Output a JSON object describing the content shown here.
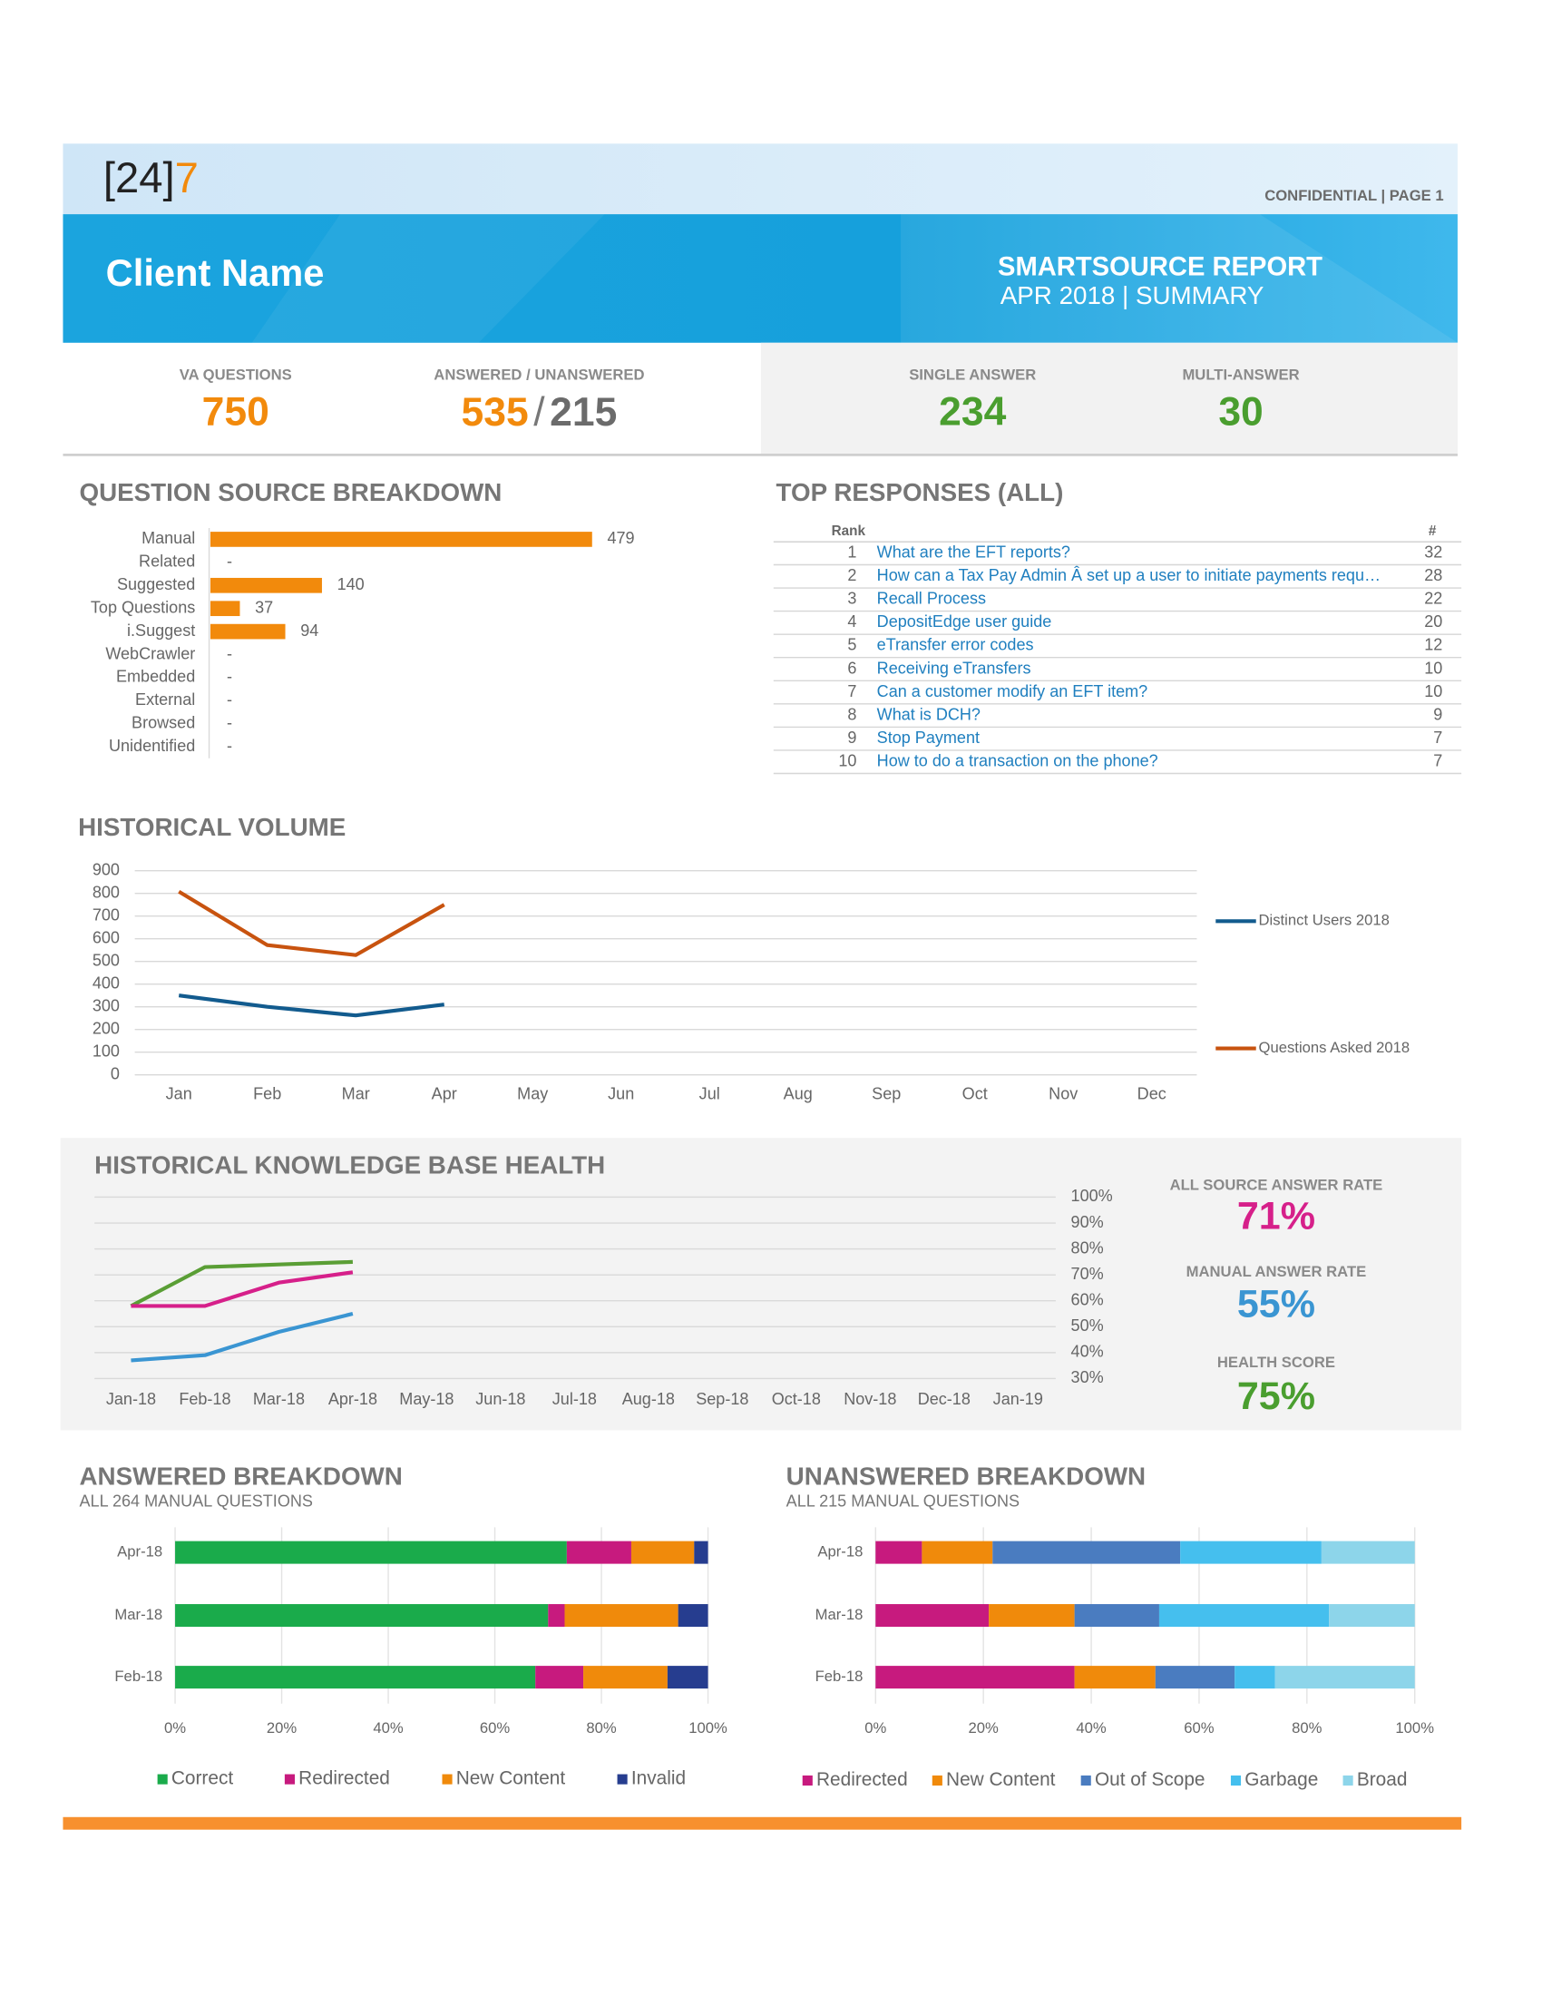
{
  "header": {
    "logo": "[24]",
    "logo_accent": "7",
    "confidential": "CONFIDENTIAL |  PAGE 1",
    "client_name": "Client Name",
    "report_title": "SMARTSOURCE REPORT",
    "report_period": "APR 2018 | SUMMARY"
  },
  "kpis": {
    "va_questions": {
      "label": "VA QUESTIONS",
      "value": 750
    },
    "answered_unanswered": {
      "label": "ANSWERED / UNANSWERED",
      "answered": 535,
      "separator": "/",
      "unanswered": 215
    },
    "single_answer": {
      "label": "SINGLE ANSWER",
      "value": 234
    },
    "multi_answer": {
      "label": "MULTI-ANSWER",
      "value": 30
    }
  },
  "top_responses": {
    "title": "TOP RESPONSES (ALL)",
    "columns": [
      "Rank",
      "#"
    ],
    "rows": [
      [
        1,
        "What are the EFT reports?",
        32
      ],
      [
        2,
        "How can a Tax Pay Admin Â set up a user to initiate payments requ…",
        28
      ],
      [
        3,
        "Recall Process",
        22
      ],
      [
        4,
        "DepositEdge user guide",
        20
      ],
      [
        5,
        "eTransfer error codes",
        12
      ],
      [
        6,
        "Receiving eTransfers",
        10
      ],
      [
        7,
        "Can a customer modify an EFT item?",
        10
      ],
      [
        8,
        "What is DCH?",
        9
      ],
      [
        9,
        "Stop Payment",
        7
      ],
      [
        10,
        "How to do a transaction on the phone?",
        7
      ]
    ]
  },
  "kb_stats": [
    {
      "title": "ALL SOURCE ANSWER RATE",
      "value": "71%",
      "color": "#d6208a"
    },
    {
      "title": "MANUAL ANSWER RATE",
      "value": "55%",
      "color": "#3a95d2"
    },
    {
      "title": "HEALTH SCORE",
      "value": "75%",
      "color": "#4a9e2f"
    }
  ],
  "chart_data": [
    {
      "type": "hbar",
      "title": "QUESTION SOURCE BREAKDOWN",
      "categories": [
        "Manual",
        "Related",
        "Suggested",
        "Top Questions",
        "i.Suggest",
        "WebCrawler",
        "Embedded",
        "External",
        "Browsed",
        "Unidentified"
      ],
      "values": [
        479,
        null,
        140,
        37,
        94,
        null,
        null,
        null,
        null,
        null
      ],
      "value_labels": [
        "479",
        "-",
        "140",
        "37",
        "94",
        "-",
        "-",
        "-",
        "-",
        "-"
      ],
      "color": "#f28a0c"
    },
    {
      "type": "line",
      "title": "HISTORICAL VOLUME",
      "categories": [
        "Jan",
        "Feb",
        "Mar",
        "Apr",
        "May",
        "Jun",
        "Jul",
        "Aug",
        "Sep",
        "Oct",
        "Nov",
        "Dec"
      ],
      "series": [
        {
          "name": "Distinct Users 2018",
          "color": "#125b8e",
          "values": [
            350,
            300,
            262,
            310,
            null,
            null,
            null,
            null,
            null,
            null,
            null,
            null
          ]
        },
        {
          "name": "Questions Asked 2018",
          "color": "#c8530f",
          "values": [
            808,
            572,
            528,
            750,
            null,
            null,
            null,
            null,
            null,
            null,
            null,
            null
          ]
        }
      ],
      "ylim": [
        0,
        900
      ],
      "yticks": [
        0,
        100,
        200,
        300,
        400,
        500,
        600,
        700,
        800,
        900
      ],
      "grid": true,
      "legend": "right"
    },
    {
      "type": "line",
      "title": "HISTORICAL KNOWLEDGE BASE HEALTH",
      "categories": [
        "Jan-18",
        "Feb-18",
        "Mar-18",
        "Apr-18",
        "May-18",
        "Jun-18",
        "Jul-18",
        "Aug-18",
        "Sep-18",
        "Oct-18",
        "Nov-18",
        "Dec-18",
        "Jan-19"
      ],
      "series": [
        {
          "color": "#5a9e35",
          "values": [
            58,
            73,
            74,
            75,
            null,
            null,
            null,
            null,
            null,
            null,
            null,
            null,
            null
          ]
        },
        {
          "color": "#d6208a",
          "values": [
            58,
            58,
            67,
            71,
            null,
            null,
            null,
            null,
            null,
            null,
            null,
            null,
            null
          ]
        },
        {
          "color": "#3a95d2",
          "values": [
            37,
            39,
            48,
            55,
            null,
            null,
            null,
            null,
            null,
            null,
            null,
            null,
            null
          ]
        }
      ],
      "ylim": [
        30,
        100
      ],
      "yticks": [
        {
          "value": 30,
          "label": "30%"
        },
        {
          "value": 40,
          "label": "40%"
        },
        {
          "value": 50,
          "label": "50%"
        },
        {
          "value": 60,
          "label": "60%"
        },
        {
          "value": 70,
          "label": "70%"
        },
        {
          "value": 80,
          "label": "80%"
        },
        {
          "value": 90,
          "label": "90%"
        },
        {
          "value": 100,
          "label": "100%"
        }
      ],
      "grid": true
    },
    {
      "type": "stacked_hbar",
      "title": "ANSWERED BREAKDOWN",
      "subtitle": "ALL 264 MANUAL QUESTIONS",
      "categories": [
        "Apr-18",
        "Mar-18",
        "Feb-18"
      ],
      "series": [
        {
          "name": "Correct",
          "color": "#1aab4b",
          "values": [
            73.5,
            70,
            67.6
          ]
        },
        {
          "name": "Redirected",
          "color": "#c71a7e",
          "values": [
            12.1,
            3.1,
            9
          ]
        },
        {
          "name": "New Content",
          "color": "#f08a0b",
          "values": [
            11.8,
            21.3,
            15.8
          ]
        },
        {
          "name": "Invalid",
          "color": "#263d8f",
          "values": [
            2.6,
            5.6,
            7.6
          ]
        }
      ],
      "xlim": [
        0,
        100
      ],
      "xticks": [
        {
          "value": 0,
          "label": "0%"
        },
        {
          "value": 20,
          "label": "20%"
        },
        {
          "value": 40,
          "label": "40%"
        },
        {
          "value": 60,
          "label": "60%"
        },
        {
          "value": 80,
          "label": "80%"
        },
        {
          "value": 100,
          "label": "100%"
        }
      ],
      "grid": true
    },
    {
      "type": "stacked_hbar",
      "title": "UNANSWERED BREAKDOWN",
      "subtitle": "ALL 215 MANUAL QUESTIONS",
      "categories": [
        "Apr-18",
        "Mar-18",
        "Feb-18"
      ],
      "series": [
        {
          "name": "Redirected",
          "color": "#c71a7e",
          "values": [
            8.6,
            21,
            36.9
          ]
        },
        {
          "name": "New Content",
          "color": "#f08a0b",
          "values": [
            13.1,
            15.9,
            15
          ]
        },
        {
          "name": "Out of Scope",
          "color": "#4a7cc0",
          "values": [
            34.8,
            15.7,
            14.7
          ]
        },
        {
          "name": "Garbage",
          "color": "#45bfee",
          "values": [
            26.2,
            31.5,
            7.5
          ]
        },
        {
          "name": "Broad",
          "color": "#8dd5ea",
          "values": [
            17.3,
            15.9,
            25.9
          ]
        }
      ],
      "xlim": [
        0,
        100
      ],
      "xticks": [
        {
          "value": 0,
          "label": "0%"
        },
        {
          "value": 20,
          "label": "20%"
        },
        {
          "value": 40,
          "label": "40%"
        },
        {
          "value": 60,
          "label": "60%"
        },
        {
          "value": 80,
          "label": "80%"
        },
        {
          "value": 100,
          "label": "100%"
        }
      ],
      "grid": true
    }
  ]
}
